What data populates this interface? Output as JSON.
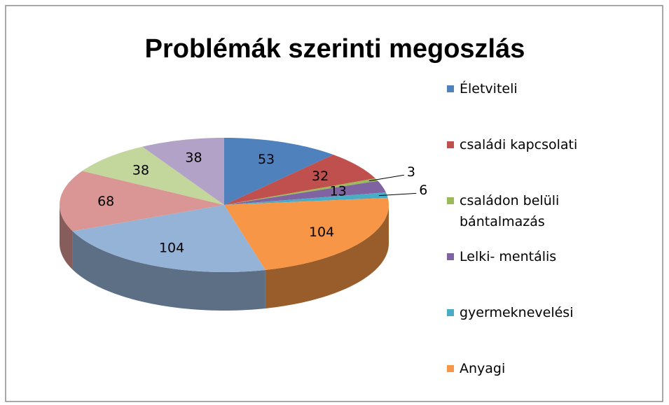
{
  "chart_data": {
    "type": "pie3d",
    "title": "Problémák szerinti megoszlás",
    "categories": [
      "Életviteli",
      "családi kapcsolati",
      "családon belüli bántalmazás",
      "Lelki- mentális",
      "gyermeknevelési",
      "Anyagi",
      null,
      null,
      null,
      null
    ],
    "values": [
      53,
      32,
      3,
      13,
      6,
      104,
      104,
      68,
      38,
      38
    ],
    "colors": [
      "#4f81bd",
      "#c0504d",
      "#9bbb59",
      "#8064a2",
      "#4bacc6",
      "#f79646",
      "#95b3d7",
      "#d99694",
      "#c3d69b",
      "#b3a2c7"
    ]
  }
}
